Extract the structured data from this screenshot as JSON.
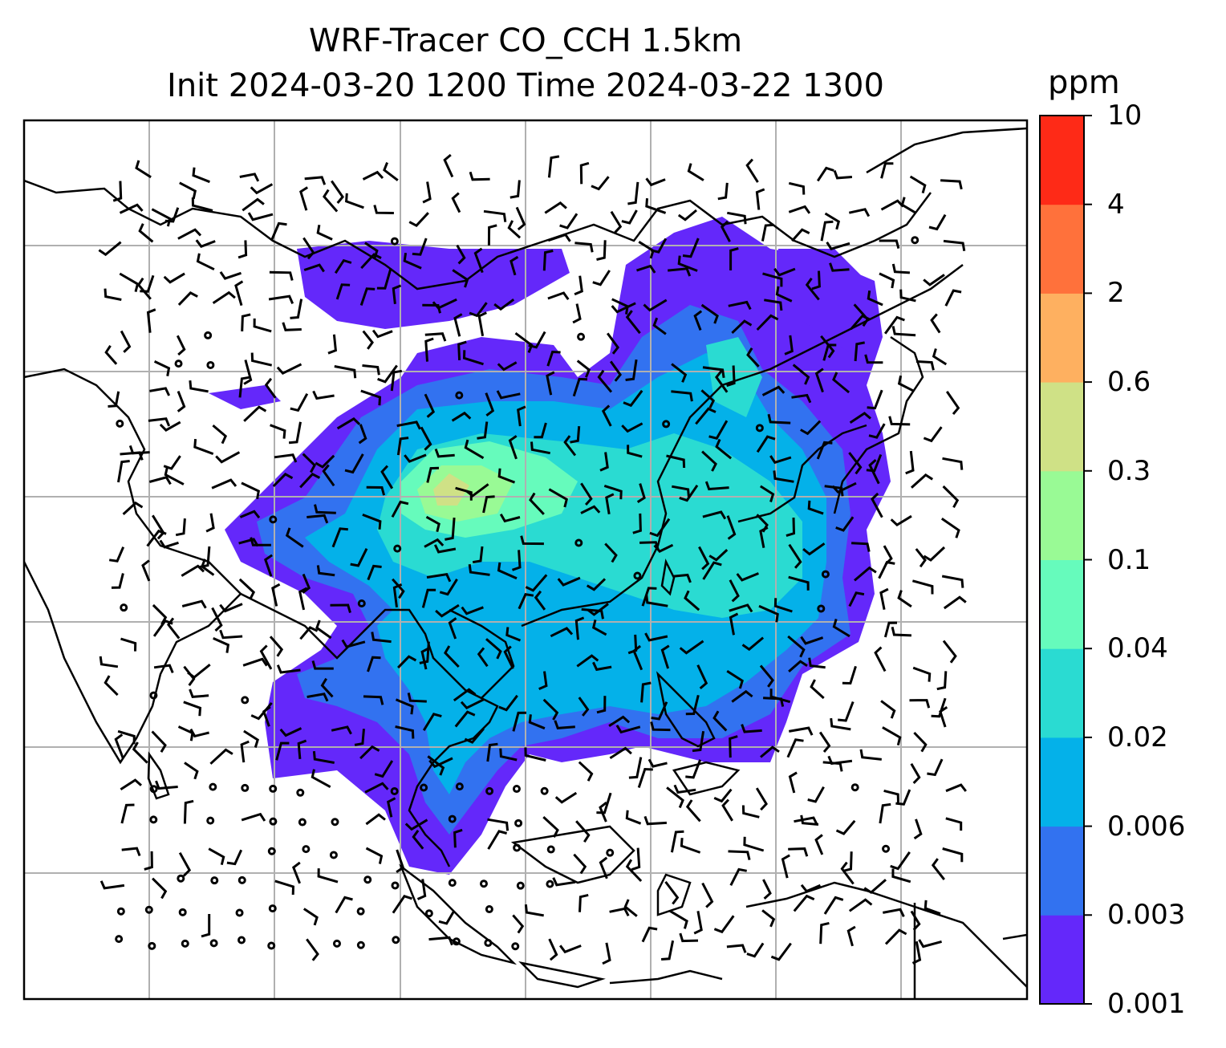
{
  "title": {
    "line1": "WRF-Tracer CO_CCH 1.5km",
    "line2": "Init 2024-03-20 1200 Time 2024-03-22 1300"
  },
  "colorbar": {
    "unit": "ppm",
    "levels": [
      "0.001",
      "0.003",
      "0.006",
      "0.02",
      "0.04",
      "0.1",
      "0.3",
      "0.6",
      "2",
      "4",
      "10"
    ],
    "colors": [
      "#6428fa",
      "#3272f0",
      "#04b1e9",
      "#2adbd2",
      "#66fbbc",
      "#99fa95",
      "#cfe186",
      "#feb060",
      "#ff713b",
      "#fe2a17"
    ]
  },
  "map": {
    "gridlines": true,
    "wind_symbol": "wind-barb",
    "calm_symbol": "calm-circle"
  }
}
